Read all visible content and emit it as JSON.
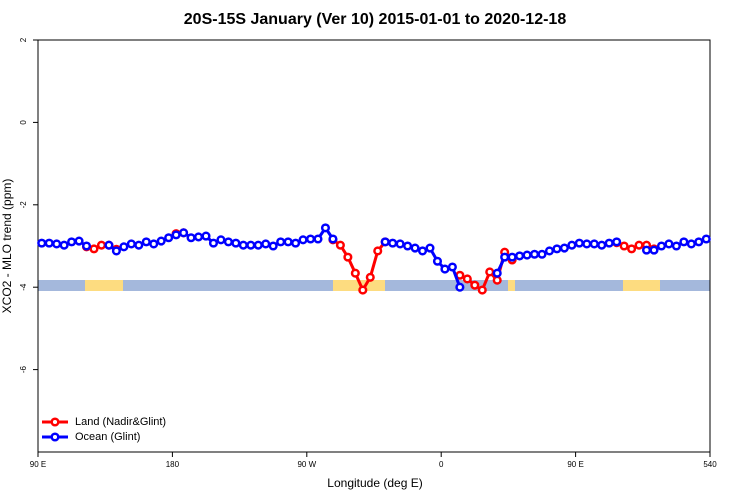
{
  "chart_data": {
    "type": "line",
    "title": "20S-15S January (Ver 10)   2015-01-01 to 2020-12-18",
    "x_label": "Longitude (deg E)",
    "y_label": "XCO2 - MLO trend (ppm)",
    "x": [
      92.5,
      97.5,
      102.5,
      107.5,
      112.5,
      117.5,
      122.5,
      127.5,
      132.5,
      137.5,
      142.5,
      147.5,
      152.5,
      157.5,
      162.5,
      167.5,
      172.5,
      177.5,
      182.5,
      187.5,
      192.5,
      197.5,
      202.5,
      207.5,
      212.5,
      217.5,
      222.5,
      227.5,
      232.5,
      237.5,
      242.5,
      247.5,
      252.5,
      257.5,
      262.5,
      267.5,
      272.5,
      277.5,
      282.5,
      287.5,
      292.5,
      297.5,
      302.5,
      307.5,
      312.5,
      317.5,
      322.5,
      327.5,
      332.5,
      337.5,
      342.5,
      347.5,
      352.5,
      357.5,
      362.5,
      367.5,
      372.5,
      377.5,
      382.5,
      387.5,
      392.5,
      397.5,
      402.5,
      407.5,
      412.5,
      417.5,
      422.5,
      427.5,
      432.5,
      437.5,
      442.5,
      447.5,
      452.5,
      457.5,
      462.5,
      467.5,
      472.5,
      477.5,
      482.5,
      487.5,
      492.5,
      497.5,
      502.5,
      507.5,
      512.5,
      517.5,
      522.5,
      527.5,
      532.5,
      537.5
    ],
    "series": [
      {
        "name": "Land (Nadir&Glint)",
        "color": "#ff0000",
        "values": [
          null,
          null,
          null,
          null,
          null,
          null,
          -3.02,
          -3.07,
          -2.98,
          -2.98,
          -3.08,
          null,
          null,
          null,
          null,
          null,
          null,
          null,
          -2.7,
          -2.68,
          null,
          null,
          null,
          null,
          null,
          null,
          null,
          null,
          null,
          null,
          null,
          null,
          null,
          null,
          null,
          null,
          null,
          null,
          null,
          -2.85,
          -2.98,
          -3.27,
          -3.66,
          -4.07,
          -3.76,
          -3.12,
          -2.9,
          null,
          null,
          null,
          null,
          null,
          null,
          null,
          null,
          null,
          -3.71,
          -3.8,
          -3.95,
          -4.07,
          -3.63,
          -3.83,
          -3.15,
          -3.34,
          null,
          null,
          null,
          null,
          null,
          null,
          null,
          null,
          null,
          null,
          null,
          null,
          null,
          -2.92,
          -3.0,
          -3.07,
          -2.98,
          -2.98,
          -3.07,
          null,
          null,
          null,
          null,
          null,
          null,
          null
        ]
      },
      {
        "name": "Ocean (Glint)",
        "color": "#0000ff",
        "values": [
          -2.93,
          -2.93,
          -2.95,
          -2.98,
          -2.9,
          -2.88,
          -3.0,
          null,
          null,
          -2.98,
          -3.12,
          -3.02,
          -2.95,
          -2.98,
          -2.9,
          -2.95,
          -2.88,
          -2.8,
          -2.73,
          -2.68,
          -2.8,
          -2.78,
          -2.76,
          -2.93,
          -2.85,
          -2.9,
          -2.93,
          -2.98,
          -2.98,
          -2.98,
          -2.95,
          -3.0,
          -2.9,
          -2.9,
          -2.93,
          -2.85,
          -2.83,
          -2.83,
          -2.56,
          -2.83,
          null,
          null,
          null,
          null,
          null,
          null,
          -2.9,
          -2.93,
          -2.95,
          -3.0,
          -3.05,
          -3.12,
          -3.05,
          -3.37,
          -3.56,
          -3.51,
          -4.0,
          null,
          null,
          null,
          null,
          -3.66,
          -3.27,
          -3.27,
          -3.24,
          -3.22,
          -3.2,
          -3.2,
          -3.12,
          -3.07,
          -3.05,
          -2.98,
          -2.93,
          -2.95,
          -2.95,
          -2.98,
          -2.93,
          -2.9,
          null,
          null,
          null,
          -3.1,
          -3.1,
          -3.0,
          -2.95,
          -3.0,
          -2.9,
          -2.95,
          -2.9,
          -2.83
        ]
      }
    ],
    "xlim": [
      90,
      540
    ],
    "xticks": [
      {
        "value": 90,
        "label": "90 E"
      },
      180,
      {
        "value": 270,
        "label": "90 W"
      },
      {
        "value": 360,
        "label": "0"
      },
      {
        "value": 450,
        "label": "90 E"
      },
      540
    ],
    "ylim": [
      -8,
      2
    ],
    "yticks": [
      -6,
      -4,
      -2,
      0,
      2
    ],
    "legend": "bottom-left"
  }
}
